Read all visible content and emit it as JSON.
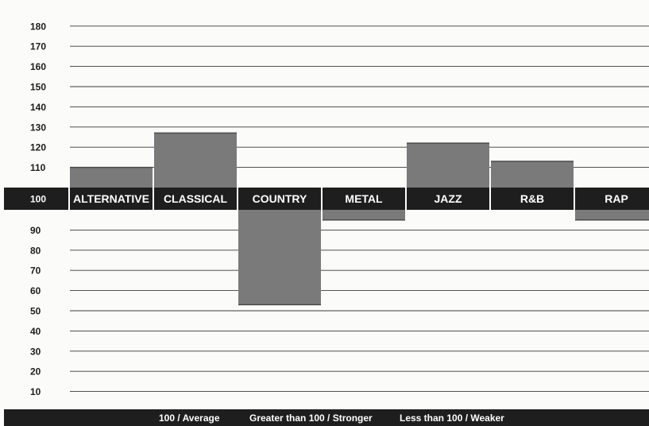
{
  "chart_data": {
    "type": "bar",
    "baseline": 100,
    "categories": [
      "ALTERNATIVE",
      "CLASSICAL",
      "COUNTRY",
      "METAL",
      "JAZZ",
      "R&B",
      "RAP"
    ],
    "values": [
      110,
      127,
      53,
      95,
      122,
      113,
      95
    ],
    "upper_ticks": [
      180,
      170,
      160,
      150,
      140,
      130,
      120,
      110
    ],
    "baseline_label": "100",
    "lower_ticks": [
      90,
      80,
      70,
      60,
      50,
      40,
      30,
      20,
      10
    ],
    "ylim": [
      10,
      180
    ],
    "grid": true,
    "legend": [
      "100 / Average",
      "Greater than 100 / Stronger",
      "Less than 100 / Weaker"
    ],
    "colors": {
      "bar": "#7a7a7a",
      "band": "#1e1e1e",
      "grid": "#3a3a3a",
      "background": "#fbfbf9"
    }
  }
}
